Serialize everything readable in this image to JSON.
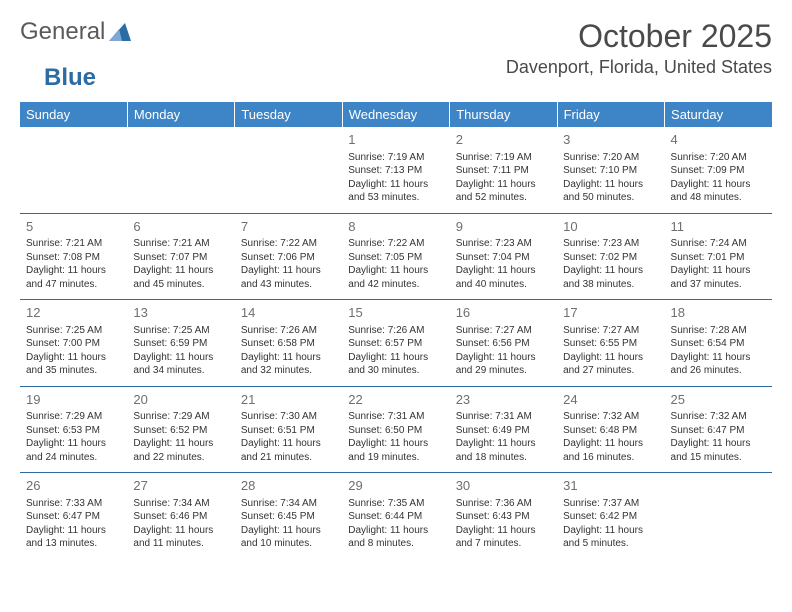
{
  "brand": {
    "part1": "General",
    "part2": "Blue"
  },
  "title": "October 2025",
  "location": "Davenport, Florida, United States",
  "colors": {
    "header_bg": "#3d85c6",
    "header_text": "#ffffff",
    "border": "#2b6ca3",
    "text": "#333333",
    "daynum": "#6f6f6f",
    "logo_gray": "#5a5a5a",
    "logo_blue": "#2b6ca3",
    "bg": "#ffffff"
  },
  "day_headers": [
    "Sunday",
    "Monday",
    "Tuesday",
    "Wednesday",
    "Thursday",
    "Friday",
    "Saturday"
  ],
  "weeks": [
    [
      null,
      null,
      null,
      {
        "n": "1",
        "sunrise": "7:19 AM",
        "sunset": "7:13 PM",
        "dl": "11 hours and 53 minutes."
      },
      {
        "n": "2",
        "sunrise": "7:19 AM",
        "sunset": "7:11 PM",
        "dl": "11 hours and 52 minutes."
      },
      {
        "n": "3",
        "sunrise": "7:20 AM",
        "sunset": "7:10 PM",
        "dl": "11 hours and 50 minutes."
      },
      {
        "n": "4",
        "sunrise": "7:20 AM",
        "sunset": "7:09 PM",
        "dl": "11 hours and 48 minutes."
      }
    ],
    [
      {
        "n": "5",
        "sunrise": "7:21 AM",
        "sunset": "7:08 PM",
        "dl": "11 hours and 47 minutes."
      },
      {
        "n": "6",
        "sunrise": "7:21 AM",
        "sunset": "7:07 PM",
        "dl": "11 hours and 45 minutes."
      },
      {
        "n": "7",
        "sunrise": "7:22 AM",
        "sunset": "7:06 PM",
        "dl": "11 hours and 43 minutes."
      },
      {
        "n": "8",
        "sunrise": "7:22 AM",
        "sunset": "7:05 PM",
        "dl": "11 hours and 42 minutes."
      },
      {
        "n": "9",
        "sunrise": "7:23 AM",
        "sunset": "7:04 PM",
        "dl": "11 hours and 40 minutes."
      },
      {
        "n": "10",
        "sunrise": "7:23 AM",
        "sunset": "7:02 PM",
        "dl": "11 hours and 38 minutes."
      },
      {
        "n": "11",
        "sunrise": "7:24 AM",
        "sunset": "7:01 PM",
        "dl": "11 hours and 37 minutes."
      }
    ],
    [
      {
        "n": "12",
        "sunrise": "7:25 AM",
        "sunset": "7:00 PM",
        "dl": "11 hours and 35 minutes."
      },
      {
        "n": "13",
        "sunrise": "7:25 AM",
        "sunset": "6:59 PM",
        "dl": "11 hours and 34 minutes."
      },
      {
        "n": "14",
        "sunrise": "7:26 AM",
        "sunset": "6:58 PM",
        "dl": "11 hours and 32 minutes."
      },
      {
        "n": "15",
        "sunrise": "7:26 AM",
        "sunset": "6:57 PM",
        "dl": "11 hours and 30 minutes."
      },
      {
        "n": "16",
        "sunrise": "7:27 AM",
        "sunset": "6:56 PM",
        "dl": "11 hours and 29 minutes."
      },
      {
        "n": "17",
        "sunrise": "7:27 AM",
        "sunset": "6:55 PM",
        "dl": "11 hours and 27 minutes."
      },
      {
        "n": "18",
        "sunrise": "7:28 AM",
        "sunset": "6:54 PM",
        "dl": "11 hours and 26 minutes."
      }
    ],
    [
      {
        "n": "19",
        "sunrise": "7:29 AM",
        "sunset": "6:53 PM",
        "dl": "11 hours and 24 minutes."
      },
      {
        "n": "20",
        "sunrise": "7:29 AM",
        "sunset": "6:52 PM",
        "dl": "11 hours and 22 minutes."
      },
      {
        "n": "21",
        "sunrise": "7:30 AM",
        "sunset": "6:51 PM",
        "dl": "11 hours and 21 minutes."
      },
      {
        "n": "22",
        "sunrise": "7:31 AM",
        "sunset": "6:50 PM",
        "dl": "11 hours and 19 minutes."
      },
      {
        "n": "23",
        "sunrise": "7:31 AM",
        "sunset": "6:49 PM",
        "dl": "11 hours and 18 minutes."
      },
      {
        "n": "24",
        "sunrise": "7:32 AM",
        "sunset": "6:48 PM",
        "dl": "11 hours and 16 minutes."
      },
      {
        "n": "25",
        "sunrise": "7:32 AM",
        "sunset": "6:47 PM",
        "dl": "11 hours and 15 minutes."
      }
    ],
    [
      {
        "n": "26",
        "sunrise": "7:33 AM",
        "sunset": "6:47 PM",
        "dl": "11 hours and 13 minutes."
      },
      {
        "n": "27",
        "sunrise": "7:34 AM",
        "sunset": "6:46 PM",
        "dl": "11 hours and 11 minutes."
      },
      {
        "n": "28",
        "sunrise": "7:34 AM",
        "sunset": "6:45 PM",
        "dl": "11 hours and 10 minutes."
      },
      {
        "n": "29",
        "sunrise": "7:35 AM",
        "sunset": "6:44 PM",
        "dl": "11 hours and 8 minutes."
      },
      {
        "n": "30",
        "sunrise": "7:36 AM",
        "sunset": "6:43 PM",
        "dl": "11 hours and 7 minutes."
      },
      {
        "n": "31",
        "sunrise": "7:37 AM",
        "sunset": "6:42 PM",
        "dl": "11 hours and 5 minutes."
      },
      null
    ]
  ],
  "labels": {
    "sunrise": "Sunrise:",
    "sunset": "Sunset:",
    "daylight": "Daylight:"
  }
}
